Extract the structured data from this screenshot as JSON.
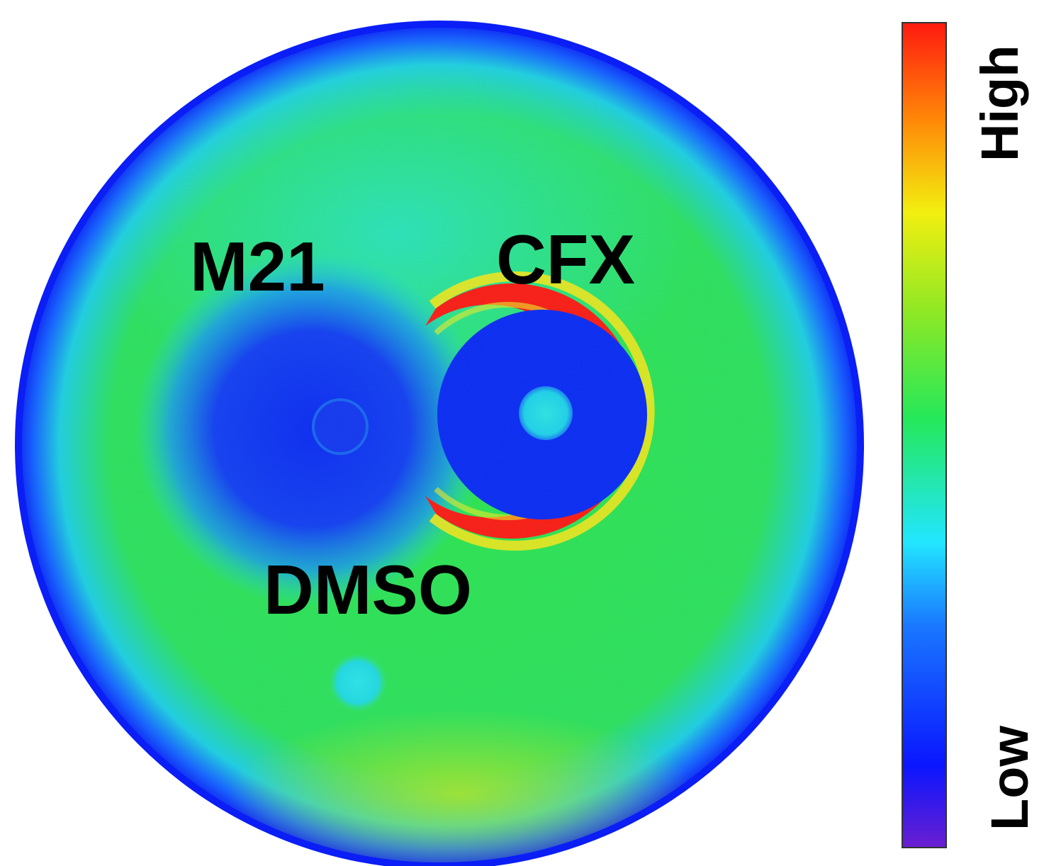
{
  "labels": {
    "m21": "M21",
    "cfx": "CFX",
    "dmso": "DMSO"
  },
  "colorbar": {
    "high_label": "High",
    "low_label": "Low",
    "stops": [
      "#6a1fd0",
      "#0a16ff",
      "#1a78ff",
      "#22e6ff",
      "#25e85a",
      "#8fe825",
      "#f2ef10",
      "#ff8a08",
      "#ff1a10"
    ]
  },
  "colors": {
    "background": "#ffffff",
    "plate_rim": "#0a1ef5",
    "plate_field": "#2ce83c",
    "inhibition_zone": "#0b2cf2",
    "induction_ring": "#ff1d10"
  }
}
